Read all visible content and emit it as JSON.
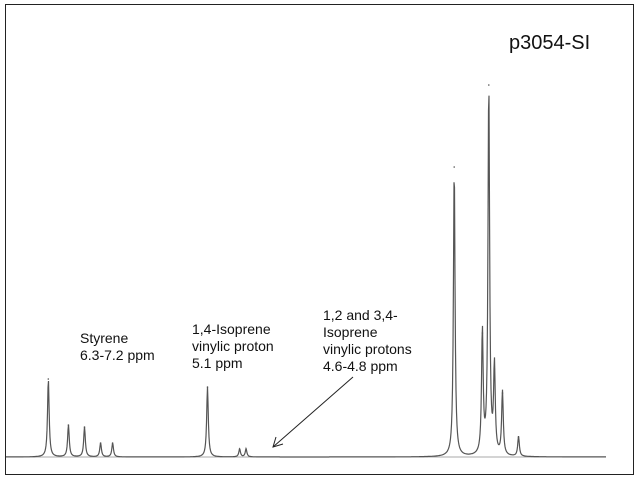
{
  "chart_data": {
    "type": "line",
    "title": "",
    "tag": "p3054-SI",
    "xlabel": "",
    "ylabel": "",
    "x_unit": "ppm",
    "xlim": [
      8.0,
      0.0
    ],
    "ylim": [
      0,
      1
    ],
    "grid": false,
    "legend": "none",
    "series": [
      {
        "peaks": [
          {
            "x": 7.1,
            "y": 0.195
          },
          {
            "x": 6.85,
            "y": 0.08
          },
          {
            "x": 6.65,
            "y": 0.075
          },
          {
            "x": 6.45,
            "y": 0.035
          },
          {
            "x": 6.3,
            "y": 0.035
          },
          {
            "x": 5.12,
            "y": 0.175
          },
          {
            "x": 4.72,
            "y": 0.02
          },
          {
            "x": 4.64,
            "y": 0.02
          },
          {
            "x": 2.05,
            "y": 0.725
          },
          {
            "x": 1.62,
            "y": 0.93
          },
          {
            "x": 1.7,
            "y": 0.31
          },
          {
            "x": 1.55,
            "y": 0.22
          },
          {
            "x": 1.45,
            "y": 0.16
          },
          {
            "x": 1.25,
            "y": 0.05
          }
        ]
      }
    ],
    "annotations": [
      {
        "lines": [
          "Styrene",
          "6.3-7.2 ppm"
        ]
      },
      {
        "lines": [
          "1,4-Isoprene",
          "vinylic proton",
          "5.1 ppm"
        ]
      },
      {
        "lines": [
          "1,2 and 3,4-",
          "Isoprene",
          "vinylic protons",
          "4.6-4.8 ppm"
        ]
      }
    ]
  }
}
